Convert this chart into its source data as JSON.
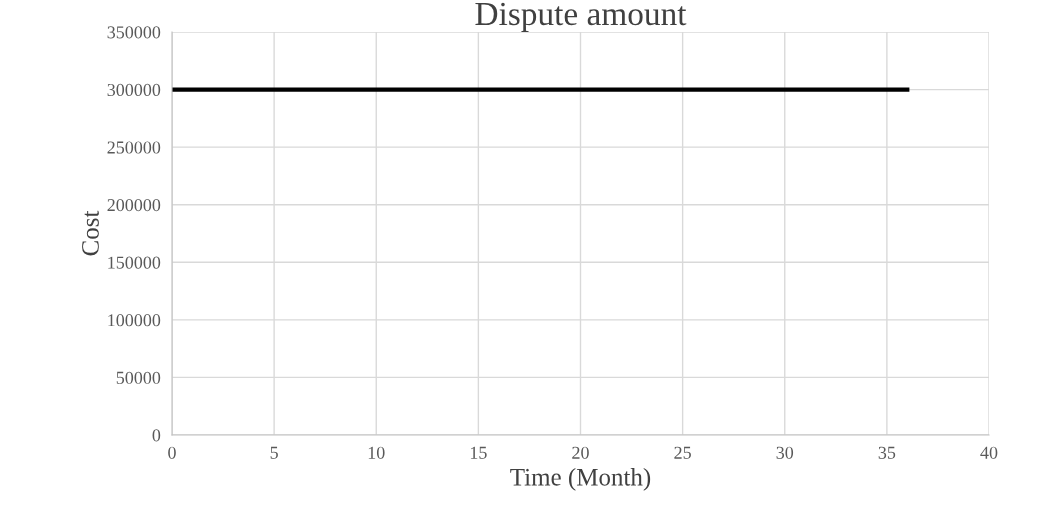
{
  "chart_data": {
    "type": "line",
    "title": "Dispute amount",
    "xlabel": "Time (Month)",
    "ylabel": "Cost",
    "series": [
      {
        "color": "#000000",
        "x": [
          0,
          36
        ],
        "values": [
          300000,
          300000
        ]
      }
    ],
    "xlim": [
      0,
      40
    ],
    "xticks": [
      0,
      5,
      10,
      15,
      20,
      25,
      30,
      35,
      40
    ],
    "ylim": [
      0,
      350000
    ],
    "yticks": [
      0,
      50000,
      100000,
      150000,
      200000,
      250000,
      300000,
      350000
    ],
    "grid": true,
    "marker": "none",
    "line_style": "solid",
    "legend": false
  }
}
